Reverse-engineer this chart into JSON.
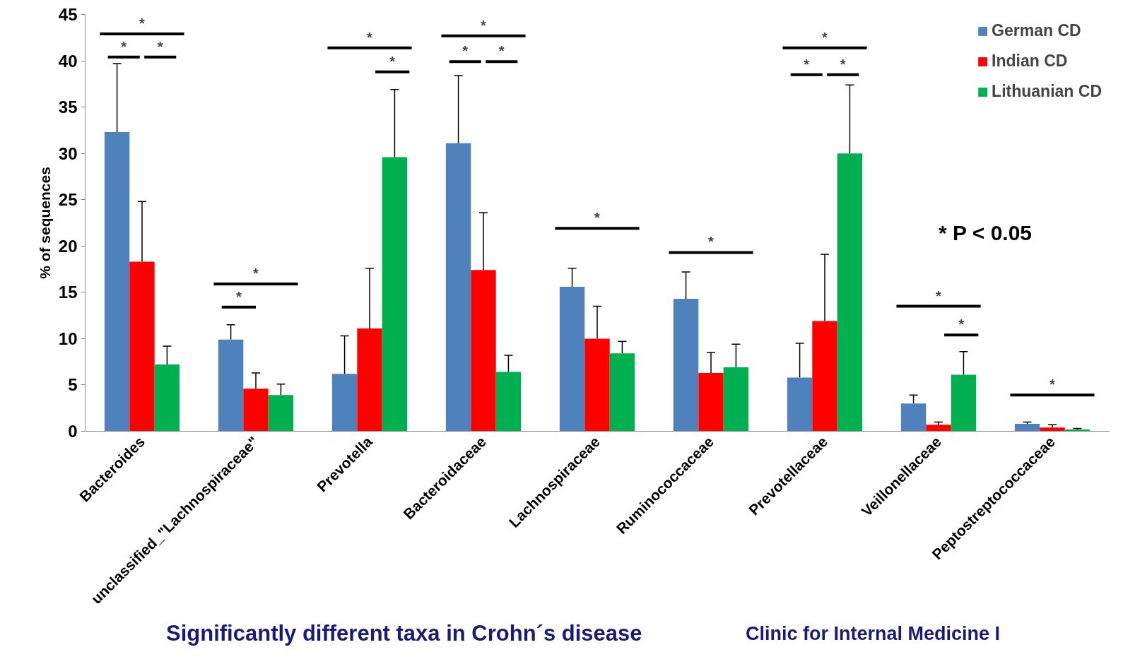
{
  "chart_data": {
    "type": "bar",
    "title": "Significantly different taxa in Crohn´s disease",
    "ylabel": "% of sequences",
    "categories": [
      "Bacteroides",
      "unclassified_\"Lachnospiraceae\"",
      "Prevotella",
      "Bacteroidaceae",
      "Lachnospiraceae",
      "Ruminococcaceae",
      "Prevotellaceae",
      "Veillonellaceae",
      "Peptostreptococcaceae"
    ],
    "series": [
      {
        "name": "German CD",
        "color": "#4f81bd",
        "values": [
          32.3,
          9.9,
          6.2,
          31.1,
          15.6,
          14.3,
          5.8,
          3.0,
          0.8
        ],
        "errors": [
          [
            32.3,
            39.7
          ],
          [
            9.9,
            11.5
          ],
          [
            6.2,
            10.3
          ],
          [
            31.1,
            38.4
          ],
          [
            15.6,
            17.6
          ],
          [
            14.3,
            17.2
          ],
          [
            5.8,
            9.5
          ],
          [
            3.0,
            3.9
          ],
          [
            0.8,
            1.0
          ]
        ]
      },
      {
        "name": "Indian CD",
        "color": "#ff0000",
        "values": [
          18.3,
          4.6,
          11.1,
          17.4,
          10.0,
          6.3,
          11.9,
          0.7,
          0.4
        ],
        "errors": [
          [
            18.3,
            24.8
          ],
          [
            4.6,
            6.3
          ],
          [
            11.1,
            17.6
          ],
          [
            17.4,
            23.6
          ],
          [
            10.0,
            13.5
          ],
          [
            6.3,
            8.5
          ],
          [
            11.9,
            19.1
          ],
          [
            0.7,
            1.0
          ],
          [
            0.4,
            0.7
          ]
        ]
      },
      {
        "name": "Lithuanian CD",
        "color": "#00b050",
        "values": [
          7.2,
          3.9,
          29.6,
          6.4,
          8.4,
          6.9,
          30.0,
          6.1,
          0.2
        ],
        "errors": [
          [
            7.2,
            9.2
          ],
          [
            3.9,
            5.1
          ],
          [
            29.6,
            36.9
          ],
          [
            6.4,
            8.2
          ],
          [
            8.4,
            9.7
          ],
          [
            6.9,
            9.4
          ],
          [
            30.0,
            37.4
          ],
          [
            6.1,
            8.6
          ],
          [
            0.2,
            0.3
          ]
        ]
      }
    ],
    "ylim": [
      0,
      45
    ],
    "yticks": [
      0,
      5,
      10,
      15,
      20,
      25,
      30,
      35,
      40,
      45
    ],
    "grid": false,
    "legend": "top right",
    "annotations": [
      "*",
      "*",
      "*",
      "*",
      "*",
      "*",
      "*",
      "*",
      "*",
      "*",
      "*",
      "*",
      "*",
      "*",
      "*",
      "*",
      "*",
      "*",
      "* P < 0.05",
      "Clinic for Internal Medicine I"
    ]
  }
}
